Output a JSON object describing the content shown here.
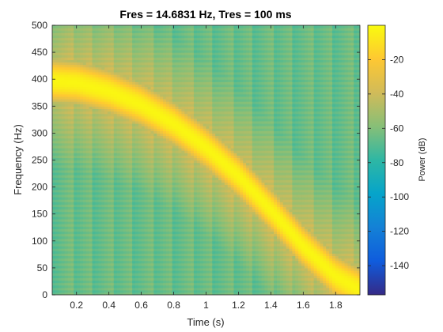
{
  "chart_data": {
    "type": "heatmap",
    "title": "Fres = 14.6831 Hz, Tres = 100 ms",
    "xlabel": "Time (s)",
    "ylabel": "Frequency (Hz)",
    "xlim": [
      0.05,
      1.95
    ],
    "ylim": [
      0,
      500
    ],
    "xticks": [
      0.2,
      0.4,
      0.6,
      0.8,
      1,
      1.2,
      1.4,
      1.6,
      1.8
    ],
    "xtick_labels": [
      "0.2",
      "0.4",
      "0.6",
      "0.8",
      "1",
      "1.2",
      "1.4",
      "1.6",
      "1.8"
    ],
    "yticks": [
      0,
      50,
      100,
      150,
      200,
      250,
      300,
      350,
      400,
      450,
      500
    ],
    "ytick_labels": [
      "0",
      "50",
      "100",
      "150",
      "200",
      "250",
      "300",
      "350",
      "400",
      "450",
      "500"
    ],
    "colormap": "parula",
    "colorbar": {
      "label": "Power (dB)",
      "clim": [
        -157,
        0
      ],
      "ticks": [
        -20,
        -40,
        -60,
        -80,
        -100,
        -120,
        -140
      ],
      "tick_labels": [
        "-20",
        "-40",
        "-60",
        "-80",
        "-100",
        "-120",
        "-140"
      ]
    },
    "ridge": {
      "description_values": "peak frequency vs time",
      "t": [
        0.05,
        0.2,
        0.4,
        0.6,
        0.8,
        1.0,
        1.2,
        1.4,
        1.6,
        1.8,
        1.95
      ],
      "f": [
        397,
        394,
        378,
        353,
        318,
        274,
        221,
        158,
        91,
        35,
        10
      ],
      "peak_db": -2,
      "background_db": -65
    }
  }
}
